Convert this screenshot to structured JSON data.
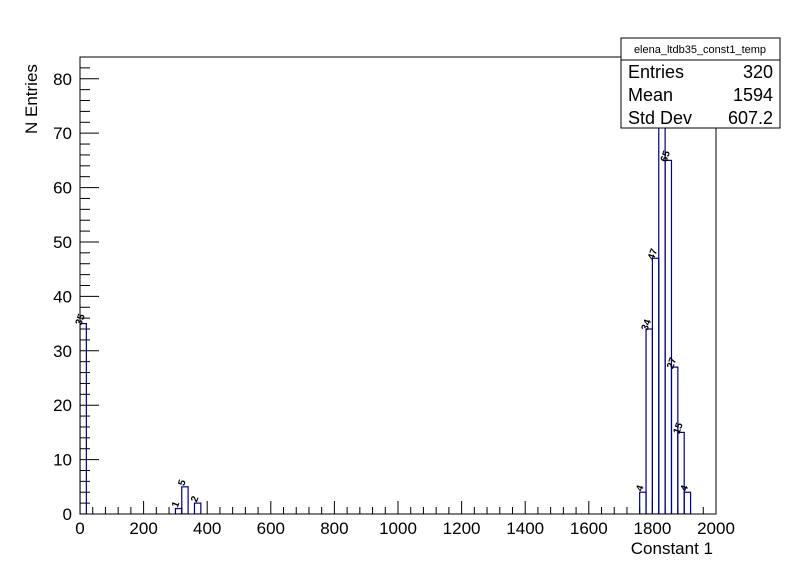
{
  "stats_box": {
    "title": "elena_ltdb35_const1_temp",
    "rows": [
      {
        "label": "Entries",
        "value": "320"
      },
      {
        "label": "Mean",
        "value": "1594"
      },
      {
        "label": "Std Dev",
        "value": "607.2"
      }
    ]
  },
  "chart_data": {
    "type": "bar",
    "histogram": true,
    "title": "",
    "xlabel": "Constant 1",
    "ylabel": "N Entries",
    "xlim": [
      0,
      2000
    ],
    "ylim": [
      0,
      84
    ],
    "x_ticks": [
      0,
      200,
      400,
      600,
      800,
      1000,
      1200,
      1400,
      1600,
      1800,
      2000
    ],
    "y_ticks": [
      0,
      10,
      20,
      30,
      40,
      50,
      60,
      70,
      80
    ],
    "bin_width": 20,
    "line_color": "#000080",
    "bins": [
      {
        "x_low": 0,
        "x_high": 20,
        "value": 35,
        "label": "35"
      },
      {
        "x_low": 300,
        "x_high": 320,
        "value": 1,
        "label": "1"
      },
      {
        "x_low": 320,
        "x_high": 340,
        "value": 5,
        "label": "5"
      },
      {
        "x_low": 360,
        "x_high": 380,
        "value": 2,
        "label": "2"
      },
      {
        "x_low": 1760,
        "x_high": 1780,
        "value": 4,
        "label": "4"
      },
      {
        "x_low": 1780,
        "x_high": 1800,
        "value": 34,
        "label": "34"
      },
      {
        "x_low": 1800,
        "x_high": 1820,
        "value": 47,
        "label": "47"
      },
      {
        "x_low": 1820,
        "x_high": 1840,
        "value": 86,
        "label": ""
      },
      {
        "x_low": 1840,
        "x_high": 1860,
        "value": 65,
        "label": "65"
      },
      {
        "x_low": 1860,
        "x_high": 1880,
        "value": 27,
        "label": "27"
      },
      {
        "x_low": 1880,
        "x_high": 1900,
        "value": 15,
        "label": "15"
      },
      {
        "x_low": 1900,
        "x_high": 1920,
        "value": 4,
        "label": "4"
      }
    ]
  }
}
